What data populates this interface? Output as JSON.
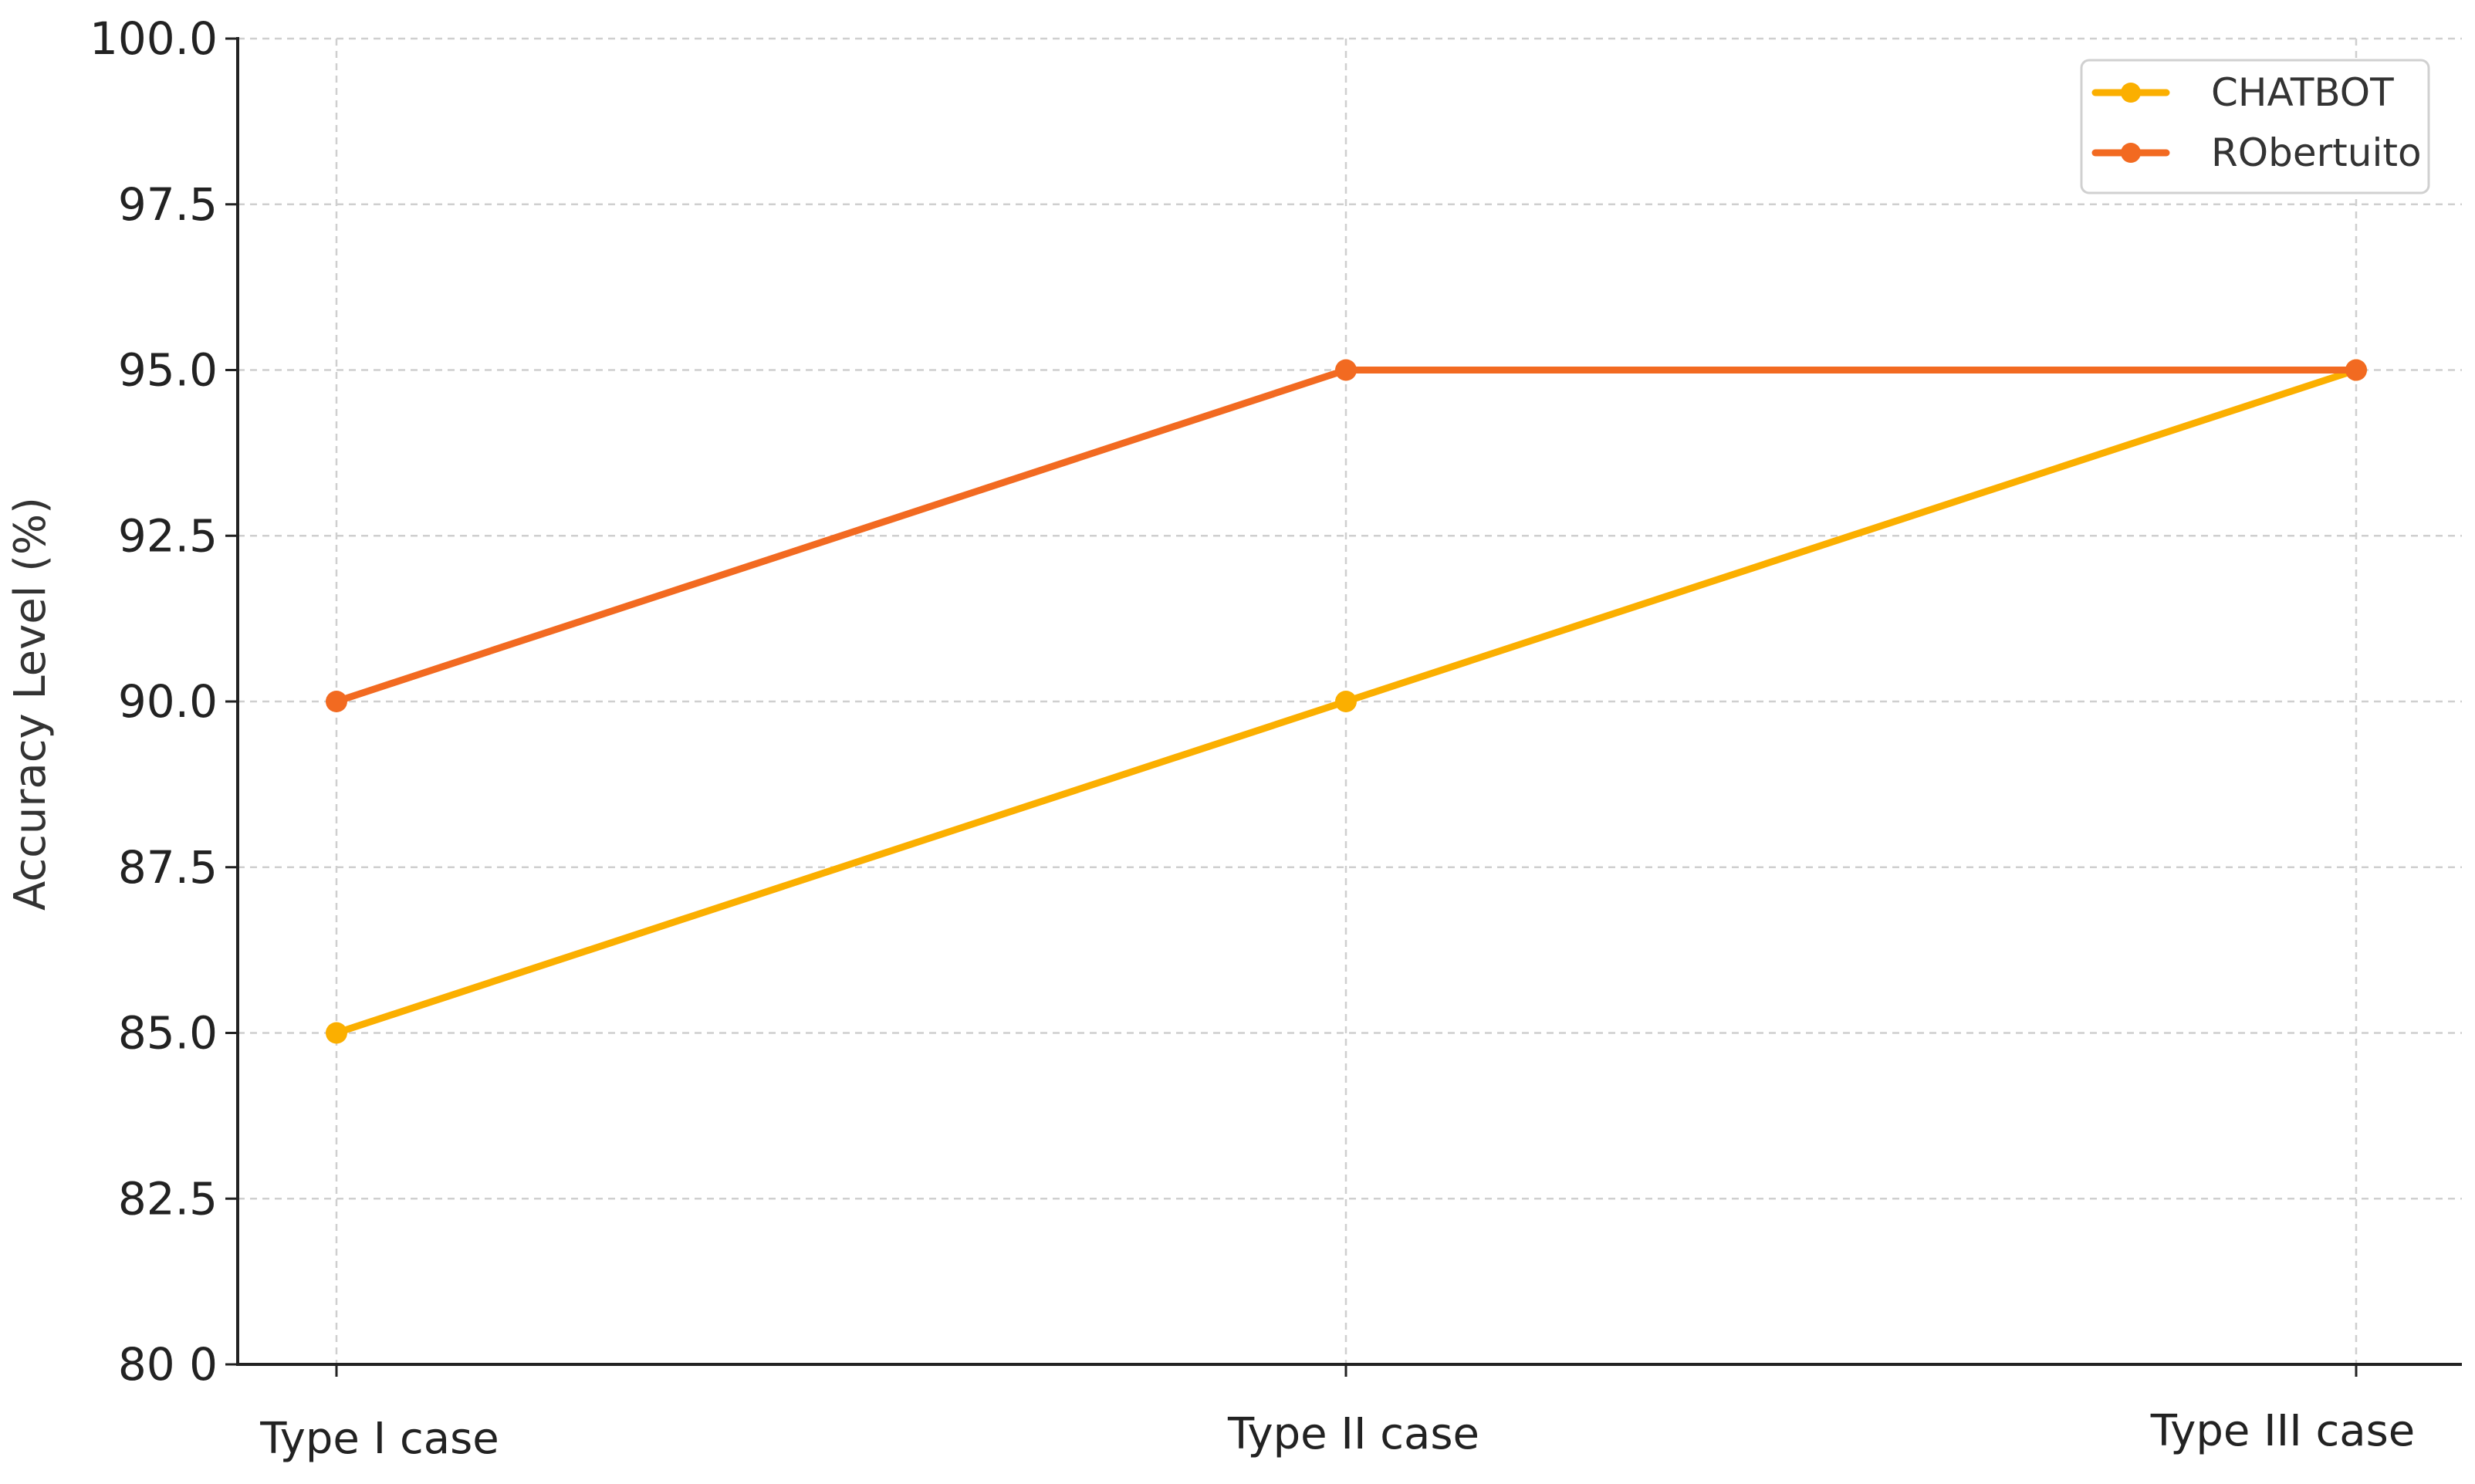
{
  "chart_data": {
    "type": "line",
    "categories": [
      "Type I case",
      "Type II case",
      "Type III case"
    ],
    "series": [
      {
        "name": "CHATBOT",
        "values": [
          85.0,
          90.0,
          95.0
        ],
        "color": "#FBAF00"
      },
      {
        "name": "RObertuito",
        "values": [
          90.0,
          95.0,
          95.0
        ],
        "color": "#F26A21"
      }
    ],
    "title": "",
    "xlabel": "",
    "ylabel": "Accuracy Level (%)",
    "ylim": [
      80.0,
      100.0
    ],
    "yticks": [
      80.0,
      82.5,
      85.0,
      87.5,
      90.0,
      92.5,
      95.0,
      97.5,
      100.0
    ],
    "ytick_labels": [
      "80 0",
      "82.5",
      "85.0",
      "87.5",
      "90.0",
      "92.5",
      "95.0",
      "97.5",
      "100.0"
    ],
    "grid": true,
    "legend_position": "top-right"
  }
}
